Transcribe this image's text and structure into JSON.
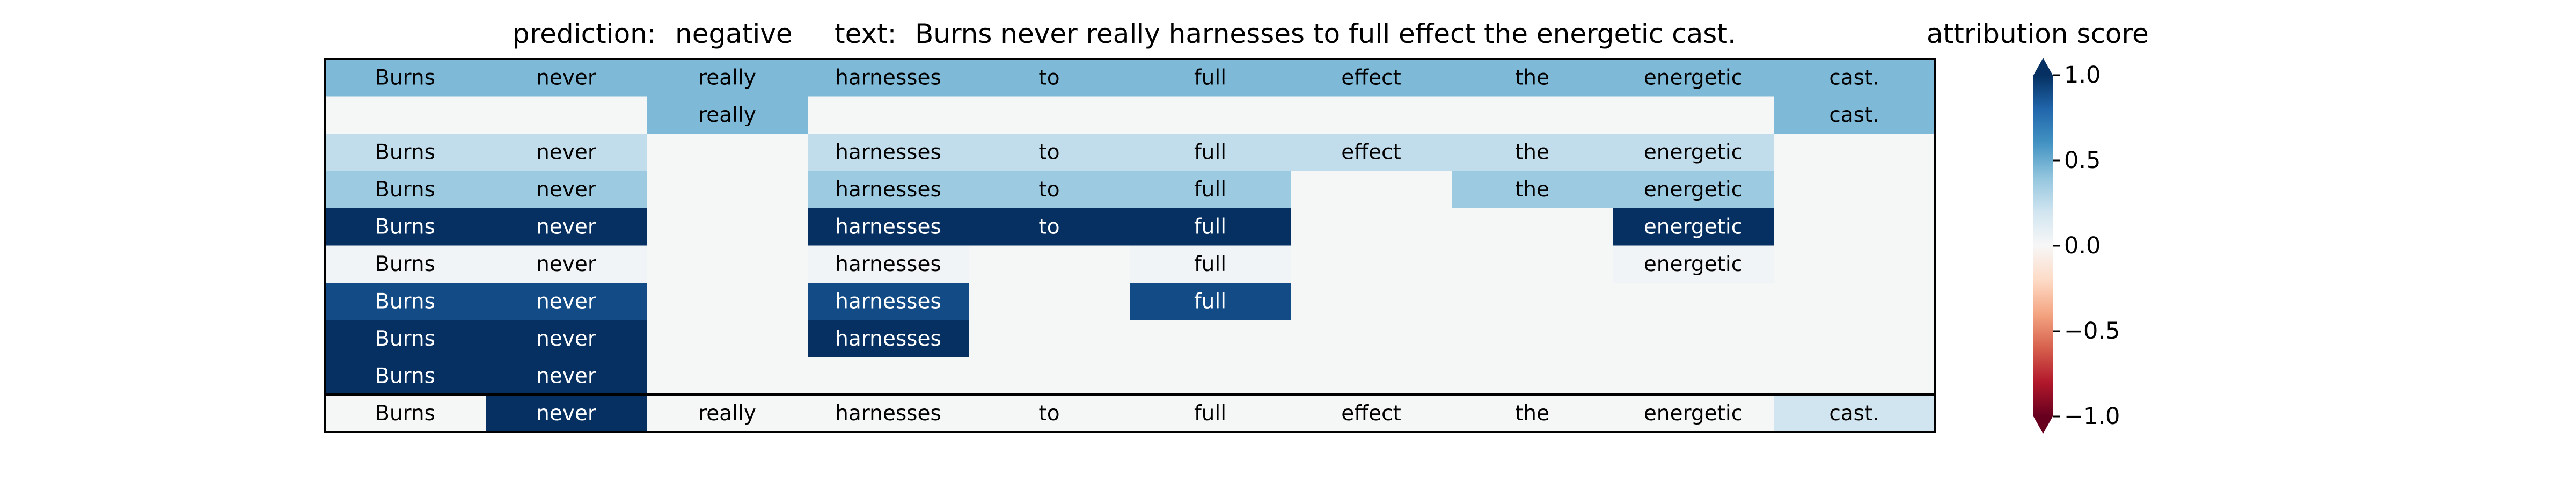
{
  "header": {
    "prediction_label": "prediction:",
    "prediction_value": "negative",
    "text_label": "text:",
    "text_value": "Burns never really harnesses to full effect the energetic cast."
  },
  "chart_data": {
    "type": "heatmap",
    "title": "",
    "tokens": [
      "Burns",
      "never",
      "really",
      "harnesses",
      "to",
      "full",
      "effect",
      "the",
      "energetic",
      "cast."
    ],
    "rows": [
      {
        "mask": [
          1,
          1,
          1,
          1,
          1,
          1,
          1,
          1,
          1,
          1
        ],
        "value": 0.45
      },
      {
        "mask": [
          0,
          0,
          1,
          0,
          0,
          0,
          0,
          0,
          0,
          1
        ],
        "value": 0.45
      },
      {
        "mask": [
          1,
          1,
          0,
          1,
          1,
          1,
          1,
          1,
          1,
          0
        ],
        "value": 0.25
      },
      {
        "mask": [
          1,
          1,
          0,
          1,
          1,
          1,
          0,
          1,
          1,
          0
        ],
        "value": 0.37
      },
      {
        "mask": [
          1,
          1,
          0,
          1,
          1,
          1,
          0,
          0,
          1,
          0
        ],
        "value": 1.0
      },
      {
        "mask": [
          1,
          1,
          0,
          1,
          0,
          1,
          0,
          0,
          1,
          0
        ],
        "value": 0.03
      },
      {
        "mask": [
          1,
          1,
          0,
          1,
          0,
          1,
          0,
          0,
          0,
          0
        ],
        "value": 0.9
      },
      {
        "mask": [
          1,
          1,
          0,
          1,
          0,
          0,
          0,
          0,
          0,
          0
        ],
        "value": 1.0
      },
      {
        "mask": [
          1,
          1,
          0,
          0,
          0,
          0,
          0,
          0,
          0,
          0
        ],
        "value": 1.0
      }
    ],
    "token_scores": [
      0.0,
      1.0,
      0.0,
      0.0,
      0.0,
      0.0,
      0.0,
      0.0,
      0.0,
      0.2
    ],
    "colorbar": {
      "label": "attribution score",
      "colormap": "RdBu",
      "range": [
        -1.0,
        1.0
      ],
      "ticks": [
        1.0,
        0.5,
        0.0,
        -0.5,
        -1.0
      ],
      "tick_labels": [
        "1.0",
        "0.5",
        "0.0",
        "−0.5",
        "−1.0"
      ]
    }
  },
  "colors": {
    "background_cell": "#f5f6f6",
    "text_dark": "#000000",
    "text_light": "#ffffff"
  }
}
